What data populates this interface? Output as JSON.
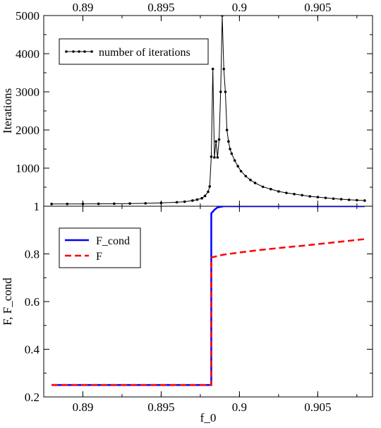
{
  "chart_data": [
    {
      "type": "line",
      "panel": "top",
      "ylabel": "Iterations",
      "xlabel": "",
      "xlim": [
        0.8875,
        0.9085
      ],
      "ylim": [
        1,
        5000
      ],
      "x_ticks": [
        {
          "value": 0.89,
          "label": "0.89"
        },
        {
          "value": 0.895,
          "label": "0.895"
        },
        {
          "value": 0.9,
          "label": "0.9"
        },
        {
          "value": 0.905,
          "label": "0.905"
        }
      ],
      "y_ticks": [
        {
          "value": 1,
          "label": "1"
        },
        {
          "value": 1000,
          "label": "1000"
        },
        {
          "value": 2000,
          "label": "2000"
        },
        {
          "value": 3000,
          "label": "3000"
        },
        {
          "value": 4000,
          "label": "4000"
        },
        {
          "value": 5000,
          "label": "5000"
        }
      ],
      "tick_labels_position": "top",
      "legend": {
        "position": "top-left",
        "entries": [
          "number of iterations"
        ]
      },
      "series": [
        {
          "name": "number of iterations",
          "color": "#000000",
          "marker": "dot",
          "points": [
            [
              0.888,
              60
            ],
            [
              0.889,
              61
            ],
            [
              0.89,
              62
            ],
            [
              0.891,
              64
            ],
            [
              0.892,
              67
            ],
            [
              0.893,
              71
            ],
            [
              0.894,
              77
            ],
            [
              0.895,
              88
            ],
            [
              0.896,
              105
            ],
            [
              0.8965,
              120
            ],
            [
              0.897,
              150
            ],
            [
              0.8973,
              175
            ],
            [
              0.8976,
              210
            ],
            [
              0.8978,
              270
            ],
            [
              0.898,
              380
            ],
            [
              0.8981,
              520
            ],
            [
              0.8982,
              1300
            ],
            [
              0.8983,
              3600
            ],
            [
              0.8984,
              1280
            ],
            [
              0.8985,
              1700
            ],
            [
              0.8986,
              1280
            ],
            [
              0.8987,
              1750
            ],
            [
              0.8988,
              3000
            ],
            [
              0.8989,
              5000
            ],
            [
              0.899,
              3600
            ],
            [
              0.8991,
              3000
            ],
            [
              0.8992,
              2000
            ],
            [
              0.8993,
              1700
            ],
            [
              0.8994,
              1500
            ],
            [
              0.8995,
              1380
            ],
            [
              0.8997,
              1200
            ],
            [
              0.8999,
              1050
            ],
            [
              0.9001,
              920
            ],
            [
              0.9004,
              790
            ],
            [
              0.9007,
              690
            ],
            [
              0.901,
              610
            ],
            [
              0.9015,
              510
            ],
            [
              0.902,
              450
            ],
            [
              0.9025,
              390
            ],
            [
              0.903,
              350
            ],
            [
              0.9035,
              320
            ],
            [
              0.904,
              290
            ],
            [
              0.9045,
              260
            ],
            [
              0.905,
              240
            ],
            [
              0.9055,
              220
            ],
            [
              0.906,
              200
            ],
            [
              0.9065,
              185
            ],
            [
              0.907,
              170
            ],
            [
              0.9075,
              160
            ],
            [
              0.908,
              150
            ]
          ]
        }
      ]
    },
    {
      "type": "line",
      "panel": "bottom",
      "ylabel": "F, F_cond",
      "xlabel": "f_0",
      "xlim": [
        0.8875,
        0.9085
      ],
      "ylim": [
        0.2,
        1.0
      ],
      "x_ticks": [
        {
          "value": 0.89,
          "label": "0.89"
        },
        {
          "value": 0.895,
          "label": "0.895"
        },
        {
          "value": 0.9,
          "label": "0.9"
        },
        {
          "value": 0.905,
          "label": "0.905"
        }
      ],
      "y_ticks": [
        {
          "value": 0.2,
          "label": "0.2"
        },
        {
          "value": 0.4,
          "label": "0.4"
        },
        {
          "value": 0.6,
          "label": "0.6"
        },
        {
          "value": 0.8,
          "label": "0.8"
        }
      ],
      "legend": {
        "position": "top-left",
        "entries": [
          "F_cond",
          "F"
        ]
      },
      "series": [
        {
          "name": "F_cond",
          "color": "#0000ff",
          "dash": "solid",
          "points": [
            [
              0.888,
              0.25
            ],
            [
              0.8982,
              0.25
            ],
            [
              0.8982,
              0.97
            ],
            [
              0.8984,
              0.985
            ],
            [
              0.8986,
              0.995
            ],
            [
              0.899,
              1.0
            ],
            [
              0.9,
              1.0
            ],
            [
              0.905,
              1.0
            ],
            [
              0.908,
              1.0
            ]
          ]
        },
        {
          "name": "F",
          "color": "#ff0000",
          "dash": "dashed",
          "points": [
            [
              0.888,
              0.25
            ],
            [
              0.8982,
              0.25
            ],
            [
              0.8982,
              0.785
            ],
            [
              0.899,
              0.797
            ],
            [
              0.9,
              0.806
            ],
            [
              0.901,
              0.814
            ],
            [
              0.902,
              0.821
            ],
            [
              0.903,
              0.828
            ],
            [
              0.904,
              0.834
            ],
            [
              0.905,
              0.841
            ],
            [
              0.906,
              0.848
            ],
            [
              0.907,
              0.855
            ],
            [
              0.908,
              0.862
            ]
          ]
        }
      ]
    }
  ]
}
